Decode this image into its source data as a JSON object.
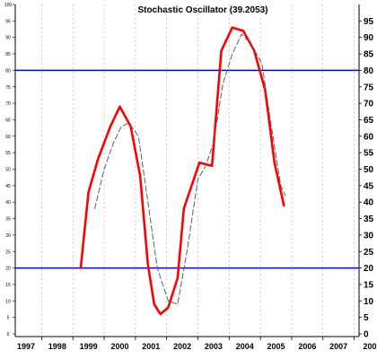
{
  "chart_data": {
    "type": "line",
    "title": "Stochastic Oscillator (39.2053)",
    "x_categories": [
      "1997",
      "1998",
      "1999",
      "2000",
      "2001",
      "2002",
      "2003",
      "2004",
      "2005",
      "2006",
      "2007",
      "200"
    ],
    "y_ticks_left": [
      "100",
      "95",
      "90",
      "85",
      "80",
      "75",
      "70",
      "65",
      "60",
      "55",
      "50",
      "45",
      "40",
      "35",
      "30",
      "25",
      "20",
      "15",
      "10",
      "5",
      "0"
    ],
    "y_ticks_right": [
      "95",
      "90",
      "85",
      "80",
      "75",
      "70",
      "65",
      "60",
      "55",
      "50",
      "45",
      "40",
      "35",
      "30",
      "25",
      "20",
      "15",
      "10",
      "5",
      "0"
    ],
    "ylim": [
      0,
      100
    ],
    "grid": {
      "vertical": true,
      "horizontal": false
    },
    "reference_lines": [
      {
        "value": 80,
        "color": "#0000ff"
      },
      {
        "value": 20,
        "color": "#0000ff"
      }
    ],
    "series": [
      {
        "style": "solid",
        "color": "#ff0000",
        "x": [
          1998.75,
          1999.0,
          1999.3,
          1999.7,
          2000.0,
          2000.35,
          2000.65,
          2000.9,
          2001.1,
          2001.3,
          2001.55,
          2001.85,
          2002.05,
          2002.55,
          2002.95,
          2003.25,
          2003.6,
          2003.95,
          2004.3,
          2004.65,
          2004.95,
          2005.25
        ],
        "y": [
          20,
          43,
          53,
          63,
          69,
          63,
          48,
          21,
          9,
          6,
          8,
          17,
          38,
          52,
          51,
          86,
          93,
          92,
          86,
          74,
          52,
          39
        ]
      },
      {
        "style": "dashed",
        "color": "#606060",
        "x": [
          1999.2,
          1999.5,
          1999.8,
          2000.05,
          2000.3,
          2000.6,
          2000.9,
          2001.2,
          2001.55,
          2001.85,
          2002.15,
          2002.5,
          2002.75,
          2003.0,
          2003.3,
          2003.6,
          2003.9,
          2004.2,
          2004.55,
          2004.85,
          2005.15,
          2005.3
        ],
        "y": [
          38,
          50,
          58,
          63,
          64,
          60,
          40,
          20,
          10,
          9,
          25,
          47,
          51,
          58,
          76,
          85,
          91,
          88,
          82,
          63,
          45,
          42
        ]
      }
    ]
  }
}
